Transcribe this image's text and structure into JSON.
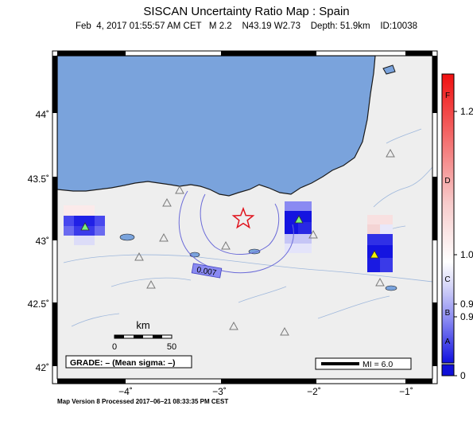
{
  "header": {
    "title": "SISCAN Uncertainty Ratio Map : Spain",
    "subtitle": "Feb  4, 2017 01:55:57 AM CET   M 2.2    N43.19 W2.73    Depth: 51.9km    ID:10038"
  },
  "map": {
    "lon_ticks": [
      {
        "value": -4,
        "label": "−4˚"
      },
      {
        "value": -3,
        "label": "−3˚"
      },
      {
        "value": -2,
        "label": "−2˚"
      },
      {
        "value": -1,
        "label": "−1˚"
      }
    ],
    "lat_ticks": [
      {
        "value": 44,
        "label": "44˚"
      },
      {
        "value": 43.5,
        "label": "43.5˚"
      },
      {
        "value": 43,
        "label": "43˚"
      },
      {
        "value": 42.5,
        "label": "42.5˚"
      },
      {
        "value": 42,
        "label": "42˚"
      }
    ],
    "contour_label": "0.007",
    "scale_bar": {
      "unit": "km",
      "label_start": "0",
      "label_end": "50"
    },
    "grade_label": "GRADE: – (Mean sigma: –)",
    "mi_label": "MI = 6.0",
    "colors": {
      "sea": "#7aa3dc",
      "land": "#eeeeee",
      "epicenter": "#e0141e",
      "station_green": "#7cf07c",
      "station_yellow": "#f2f200",
      "cell_dark": "#1a1ae6"
    }
  },
  "colorbar": {
    "grade_letters": [
      "F",
      "D",
      "C",
      "B",
      "A"
    ],
    "value_labels": [
      "1.2",
      "1.0",
      "0.9",
      "0.9",
      "0"
    ]
  },
  "footer": {
    "text": "Map Version 8 Processed 2017–06–21 08:33:35 PM CEST"
  }
}
